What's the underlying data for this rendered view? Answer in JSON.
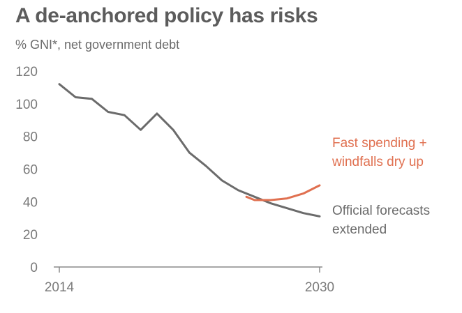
{
  "header": {
    "title": "A de-anchored policy has risks",
    "subtitle": "% GNI*, net government debt"
  },
  "colors": {
    "official": "#6b6b6b",
    "risk": "#e07050",
    "axis": "#8a8a8a",
    "text": "#7a7a7a"
  },
  "chart_data": {
    "type": "line",
    "title": "A de-anchored policy has risks",
    "subtitle": "% GNI*, net government debt",
    "xlabel": "",
    "ylabel": "",
    "xlim": [
      2014,
      2030
    ],
    "ylim": [
      0,
      120
    ],
    "yticks": [
      0,
      20,
      40,
      60,
      80,
      100,
      120
    ],
    "xtick_labels": [
      "2014",
      "2030"
    ],
    "grid": false,
    "series": [
      {
        "name": "Official forecasts extended",
        "label_lines": [
          "Official forecasts",
          "extended"
        ],
        "color": "#6b6b6b",
        "x": [
          2014,
          2015,
          2016,
          2017,
          2018,
          2019,
          2020,
          2021,
          2022,
          2023,
          2024,
          2025,
          2026,
          2027,
          2028,
          2029,
          2030
        ],
        "y": [
          112,
          104,
          103,
          95,
          93,
          84,
          94,
          84,
          70,
          62,
          53,
          47,
          43,
          39,
          36,
          33,
          31
        ]
      },
      {
        "name": "Fast spending + windfalls dry up",
        "label_lines": [
          "Fast spending +",
          "windfalls dry up"
        ],
        "color": "#e07050",
        "x": [
          2025.5,
          2026,
          2027,
          2028,
          2029,
          2030
        ],
        "y": [
          43,
          41,
          41,
          42,
          45,
          50
        ]
      }
    ]
  }
}
